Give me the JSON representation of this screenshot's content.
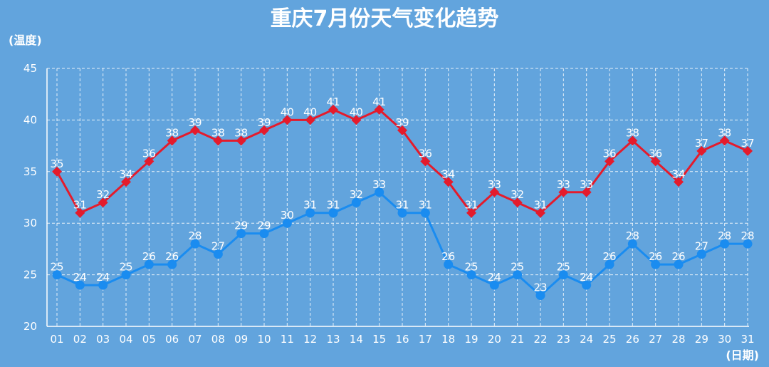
{
  "chart_data": {
    "type": "line",
    "title": "重庆7月份天气变化趋势",
    "ylabel": "(温度)",
    "xlabel": "(日期)",
    "ylim": [
      20,
      45
    ],
    "yticks": [
      "20",
      "25",
      "30",
      "35",
      "40",
      "45"
    ],
    "categories": [
      "01",
      "02",
      "03",
      "04",
      "05",
      "06",
      "07",
      "08",
      "09",
      "10",
      "11",
      "12",
      "13",
      "14",
      "15",
      "16",
      "17",
      "18",
      "19",
      "20",
      "21",
      "22",
      "23",
      "24",
      "25",
      "26",
      "27",
      "28",
      "29",
      "30",
      "31"
    ],
    "grid": true,
    "series": [
      {
        "color": "#e41b2c",
        "marker": "diamond",
        "values": [
          35,
          31,
          32,
          34,
          36,
          38,
          39,
          38,
          38,
          39,
          40,
          40,
          41,
          40,
          41,
          39,
          36,
          34,
          31,
          33,
          32,
          31,
          33,
          33,
          36,
          38,
          36,
          34,
          37,
          38,
          37
        ]
      },
      {
        "color": "#1a8cf0",
        "marker": "circle",
        "values": [
          25,
          24,
          24,
          25,
          26,
          26,
          28,
          27,
          29,
          29,
          30,
          31,
          31,
          32,
          33,
          31,
          31,
          26,
          25,
          24,
          25,
          23,
          25,
          24,
          26,
          28,
          26,
          26,
          27,
          28,
          28
        ]
      }
    ]
  }
}
